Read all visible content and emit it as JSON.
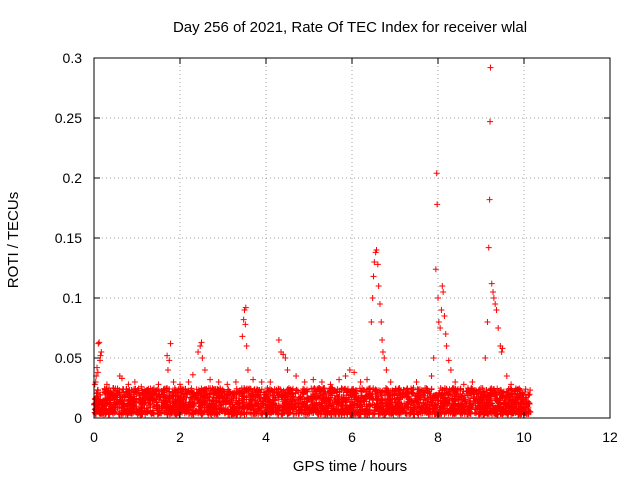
{
  "chart_data": {
    "type": "scatter",
    "title": "Day 256 of 2021, Rate Of TEC Index for receiver wlal",
    "xlabel": "GPS time / hours",
    "ylabel": "ROTI / TECUs",
    "xlim": [
      0,
      12
    ],
    "ylim": [
      0,
      0.3
    ],
    "xticks": [
      0,
      2,
      4,
      6,
      8,
      10,
      12
    ],
    "xtick_labels": [
      "0",
      "2",
      "4",
      "6",
      "8",
      "10",
      "12"
    ],
    "yticks": [
      0,
      0.05,
      0.1,
      0.15,
      0.2,
      0.25,
      0.3
    ],
    "ytick_labels": [
      "0",
      "0.05",
      "0.1",
      "0.15",
      "0.2",
      "0.25",
      "0.3"
    ],
    "grid": true,
    "marker": "+",
    "color": "#ff0000",
    "background_floor": {
      "x_range": [
        0,
        10.15
      ],
      "y_range": [
        0.003,
        0.025
      ]
    },
    "series": [
      {
        "name": "ROTI",
        "points": [
          [
            0.02,
            0.028
          ],
          [
            0.05,
            0.035
          ],
          [
            0.07,
            0.042
          ],
          [
            0.1,
            0.062
          ],
          [
            0.12,
            0.063
          ],
          [
            0.15,
            0.052
          ],
          [
            0.17,
            0.055
          ],
          [
            0.14,
            0.048
          ],
          [
            0.09,
            0.038
          ],
          [
            0.04,
            0.03
          ],
          [
            0.3,
            0.028
          ],
          [
            0.45,
            0.025
          ],
          [
            0.6,
            0.035
          ],
          [
            0.65,
            0.033
          ],
          [
            0.8,
            0.028
          ],
          [
            0.95,
            0.03
          ],
          [
            1.1,
            0.026
          ],
          [
            1.3,
            0.022
          ],
          [
            1.5,
            0.028
          ],
          [
            1.7,
            0.052
          ],
          [
            1.75,
            0.048
          ],
          [
            1.78,
            0.062
          ],
          [
            1.72,
            0.04
          ],
          [
            1.85,
            0.03
          ],
          [
            2.0,
            0.028
          ],
          [
            2.2,
            0.03
          ],
          [
            2.3,
            0.036
          ],
          [
            2.42,
            0.055
          ],
          [
            2.47,
            0.06
          ],
          [
            2.5,
            0.063
          ],
          [
            2.52,
            0.05
          ],
          [
            2.58,
            0.04
          ],
          [
            2.7,
            0.032
          ],
          [
            2.9,
            0.03
          ],
          [
            3.1,
            0.028
          ],
          [
            3.3,
            0.03
          ],
          [
            3.45,
            0.068
          ],
          [
            3.48,
            0.082
          ],
          [
            3.5,
            0.09
          ],
          [
            3.53,
            0.092
          ],
          [
            3.52,
            0.078
          ],
          [
            3.55,
            0.06
          ],
          [
            3.58,
            0.04
          ],
          [
            3.7,
            0.032
          ],
          [
            3.9,
            0.03
          ],
          [
            4.1,
            0.03
          ],
          [
            4.3,
            0.065
          ],
          [
            4.35,
            0.055
          ],
          [
            4.4,
            0.053
          ],
          [
            4.45,
            0.05
          ],
          [
            4.5,
            0.04
          ],
          [
            4.7,
            0.035
          ],
          [
            4.9,
            0.03
          ],
          [
            5.1,
            0.032
          ],
          [
            5.3,
            0.03
          ],
          [
            5.5,
            0.028
          ],
          [
            5.7,
            0.032
          ],
          [
            5.85,
            0.035
          ],
          [
            5.95,
            0.04
          ],
          [
            6.05,
            0.038
          ],
          [
            6.2,
            0.03
          ],
          [
            6.35,
            0.032
          ],
          [
            6.45,
            0.08
          ],
          [
            6.48,
            0.1
          ],
          [
            6.5,
            0.118
          ],
          [
            6.52,
            0.13
          ],
          [
            6.55,
            0.138
          ],
          [
            6.57,
            0.14
          ],
          [
            6.6,
            0.128
          ],
          [
            6.62,
            0.11
          ],
          [
            6.65,
            0.095
          ],
          [
            6.68,
            0.08
          ],
          [
            6.7,
            0.065
          ],
          [
            6.72,
            0.055
          ],
          [
            6.75,
            0.05
          ],
          [
            6.8,
            0.04
          ],
          [
            6.9,
            0.03
          ],
          [
            7.1,
            0.025
          ],
          [
            7.3,
            0.022
          ],
          [
            7.5,
            0.03
          ],
          [
            7.7,
            0.025
          ],
          [
            7.85,
            0.035
          ],
          [
            7.9,
            0.05
          ],
          [
            7.95,
            0.124
          ],
          [
            7.97,
            0.204
          ],
          [
            7.98,
            0.178
          ],
          [
            8.0,
            0.1
          ],
          [
            8.02,
            0.08
          ],
          [
            8.05,
            0.075
          ],
          [
            8.08,
            0.09
          ],
          [
            8.1,
            0.11
          ],
          [
            8.12,
            0.105
          ],
          [
            8.15,
            0.085
          ],
          [
            8.18,
            0.07
          ],
          [
            8.2,
            0.06
          ],
          [
            8.25,
            0.048
          ],
          [
            8.3,
            0.04
          ],
          [
            8.4,
            0.03
          ],
          [
            8.6,
            0.028
          ],
          [
            8.8,
            0.03
          ],
          [
            9.0,
            0.025
          ],
          [
            9.1,
            0.05
          ],
          [
            9.15,
            0.08
          ],
          [
            9.18,
            0.142
          ],
          [
            9.2,
            0.182
          ],
          [
            9.21,
            0.247
          ],
          [
            9.22,
            0.292
          ],
          [
            9.25,
            0.112
          ],
          [
            9.28,
            0.105
          ],
          [
            9.3,
            0.1
          ],
          [
            9.33,
            0.095
          ],
          [
            9.36,
            0.09
          ],
          [
            9.4,
            0.075
          ],
          [
            9.45,
            0.06
          ],
          [
            9.48,
            0.055
          ],
          [
            9.5,
            0.058
          ],
          [
            9.6,
            0.035
          ],
          [
            9.7,
            0.028
          ],
          [
            9.85,
            0.022
          ],
          [
            10.0,
            0.015
          ],
          [
            10.1,
            0.012
          ]
        ]
      }
    ]
  }
}
